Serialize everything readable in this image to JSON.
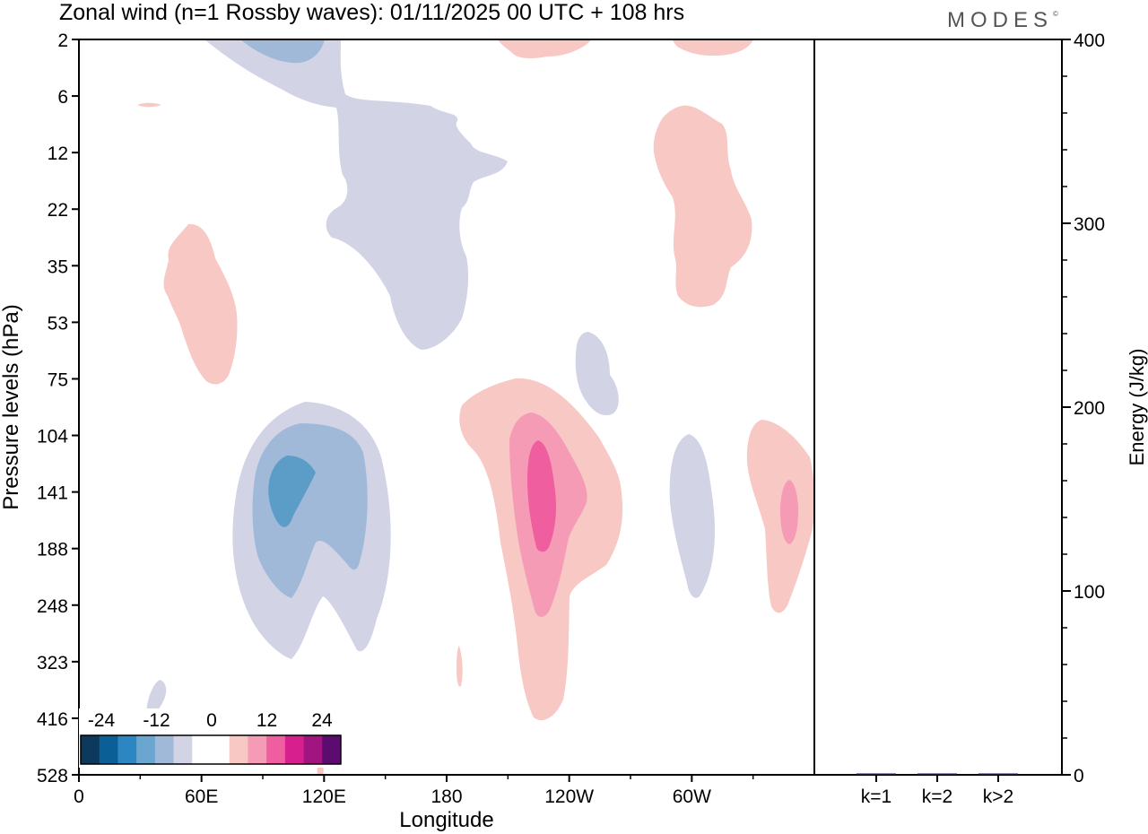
{
  "header": {
    "title": "Zonal wind (n=1 Rossby waves):  01/11/2025  00 UTC  + 108 hrs",
    "brand": "MODES"
  },
  "colors": {
    "neg1": "#d2d4e6",
    "neg2": "#a1b9d8",
    "neg3": "#5c9dc8",
    "pos1": "#f8c8c5",
    "pos2": "#f59bb5",
    "pos3": "#ef5e9f"
  },
  "chart_data": [
    {
      "type": "heatmap",
      "title": "Zonal wind (n=1 Rossby waves):  01/11/2025  00 UTC  + 108 hrs",
      "xlabel": "Longitude",
      "ylabel": "Pressure levels (hPa)",
      "x_ticks": [
        "0",
        "60E",
        "120E",
        "180",
        "120W",
        "60W"
      ],
      "x_tick_degrees": [
        0,
        60,
        120,
        180,
        240,
        300
      ],
      "xlim": [
        0,
        360
      ],
      "y_ticks": [
        "2",
        "6",
        "12",
        "22",
        "35",
        "53",
        "75",
        "104",
        "141",
        "188",
        "248",
        "323",
        "416",
        "528"
      ],
      "y_axis": "pressure levels (hPa), top to bottom",
      "colorbar": {
        "tick_labels": [
          "-24",
          "-12",
          "0",
          "12",
          "24"
        ],
        "colors": [
          "#0d3a5c",
          "#0a5f96",
          "#2c86c1",
          "#6aa6d0",
          "#a1b9d8",
          "#d2d4e6",
          "#ffffff",
          "#ffffff",
          "#f8c8c5",
          "#f59bb5",
          "#ef5e9f",
          "#d81f8e",
          "#a0157f",
          "#5c0c6e"
        ]
      }
    },
    {
      "type": "bar",
      "categories": [
        "k=1",
        "k=2",
        "k>2"
      ],
      "values": [
        0.4,
        0.6,
        0.4
      ],
      "ylabel": "Energy (J/kg)",
      "ylim": [
        0,
        400
      ],
      "y_ticks": [
        "0",
        "100",
        "200",
        "300",
        "400"
      ],
      "y_tick_values": [
        0,
        100,
        200,
        300,
        400
      ]
    }
  ]
}
